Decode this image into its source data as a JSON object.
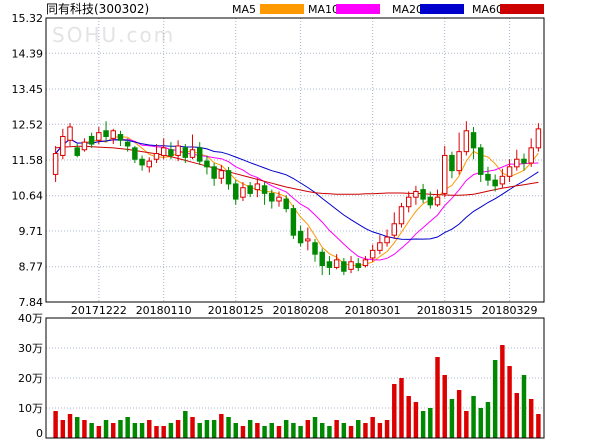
{
  "chart_data": {
    "type": "candlestick",
    "title": "同有科技(300302)",
    "watermark": "SOHU.com",
    "legend": [
      {
        "name": "MA5",
        "color": "#ff9900"
      },
      {
        "name": "MA10",
        "color": "#ff00ff"
      },
      {
        "name": "MA20",
        "color": "#0000cc"
      },
      {
        "name": "MA60",
        "color": "#cc0000"
      }
    ],
    "colors": {
      "up": "#dd0000",
      "down": "#008800",
      "grid": "#aab3cc",
      "axis": "#000000"
    },
    "price_axis": {
      "ticks": [
        "15.32",
        "14.39",
        "13.45",
        "12.52",
        "11.58",
        "10.64",
        "9.71",
        "8.77",
        "7.84"
      ],
      "min": 7.84,
      "max": 15.32,
      "grid": true
    },
    "date_labels": [
      {
        "index": 6,
        "label": "20171222"
      },
      {
        "index": 15,
        "label": "20180110"
      },
      {
        "index": 25,
        "label": "20180125"
      },
      {
        "index": 34,
        "label": "20180208"
      },
      {
        "index": 44,
        "label": "20180301"
      },
      {
        "index": 54,
        "label": "20180315"
      },
      {
        "index": 63,
        "label": "20180329"
      }
    ],
    "candles": [
      [
        11.2,
        11.75,
        11.95,
        11.0
      ],
      [
        11.7,
        12.2,
        12.4,
        11.6
      ],
      [
        12.1,
        12.45,
        12.55,
        11.95
      ],
      [
        11.9,
        11.7,
        12.0,
        11.65
      ],
      [
        11.85,
        12.05,
        12.15,
        11.8
      ],
      [
        12.2,
        12.0,
        12.3,
        11.9
      ],
      [
        12.1,
        12.3,
        12.45,
        12.0
      ],
      [
        12.35,
        12.2,
        12.6,
        12.05
      ],
      [
        12.15,
        12.35,
        12.4,
        12.0
      ],
      [
        12.25,
        12.1,
        12.35,
        11.95
      ],
      [
        12.05,
        11.95,
        12.15,
        11.8
      ],
      [
        11.9,
        11.6,
        11.95,
        11.5
      ],
      [
        11.6,
        11.45,
        11.7,
        11.3
      ],
      [
        11.4,
        11.55,
        11.65,
        11.25
      ],
      [
        11.6,
        11.75,
        12.0,
        11.5
      ],
      [
        11.7,
        11.9,
        12.15,
        11.6
      ],
      [
        11.85,
        11.7,
        12.05,
        11.6
      ],
      [
        11.7,
        11.95,
        12.1,
        11.55
      ],
      [
        11.9,
        11.65,
        12.0,
        11.5
      ],
      [
        11.65,
        11.85,
        12.25,
        11.6
      ],
      [
        11.9,
        11.55,
        12.05,
        11.45
      ],
      [
        11.55,
        11.4,
        11.7,
        11.2
      ],
      [
        11.4,
        11.1,
        11.5,
        10.9
      ],
      [
        11.1,
        11.3,
        11.45,
        10.95
      ],
      [
        11.3,
        10.95,
        11.4,
        10.8
      ],
      [
        10.95,
        10.55,
        11.05,
        10.4
      ],
      [
        10.6,
        10.85,
        11.0,
        10.5
      ],
      [
        10.9,
        10.7,
        11.0,
        10.6
      ],
      [
        10.8,
        10.95,
        11.1,
        10.6
      ],
      [
        10.9,
        10.7,
        11.0,
        10.4
      ],
      [
        10.7,
        10.5,
        10.8,
        10.3
      ],
      [
        10.5,
        10.6,
        10.75,
        10.35
      ],
      [
        10.55,
        10.3,
        10.65,
        10.2
      ],
      [
        10.3,
        9.6,
        10.4,
        9.5
      ],
      [
        9.7,
        9.4,
        9.85,
        9.3
      ],
      [
        9.45,
        9.5,
        9.8,
        9.2
      ],
      [
        9.4,
        9.1,
        9.5,
        8.9
      ],
      [
        9.15,
        8.8,
        9.25,
        8.55
      ],
      [
        8.9,
        8.75,
        9.05,
        8.55
      ],
      [
        8.75,
        8.95,
        9.1,
        8.7
      ],
      [
        8.9,
        8.65,
        9.0,
        8.55
      ],
      [
        8.7,
        8.9,
        9.05,
        8.6
      ],
      [
        8.85,
        8.75,
        9.0,
        8.65
      ],
      [
        8.8,
        8.95,
        9.05,
        8.75
      ],
      [
        9.0,
        9.2,
        9.35,
        8.9
      ],
      [
        9.2,
        9.4,
        9.6,
        9.1
      ],
      [
        9.4,
        9.55,
        9.75,
        9.3
      ],
      [
        9.6,
        9.9,
        10.2,
        9.5
      ],
      [
        9.9,
        10.35,
        10.45,
        9.8
      ],
      [
        10.35,
        10.6,
        10.75,
        10.2
      ],
      [
        10.6,
        10.75,
        10.9,
        10.4
      ],
      [
        10.8,
        10.55,
        10.95,
        10.45
      ],
      [
        10.6,
        10.4,
        10.75,
        10.3
      ],
      [
        10.4,
        10.6,
        10.8,
        10.35
      ],
      [
        10.7,
        11.7,
        11.95,
        10.6
      ],
      [
        11.7,
        11.3,
        11.8,
        11.1
      ],
      [
        11.3,
        11.8,
        12.3,
        11.2
      ],
      [
        11.8,
        12.35,
        12.6,
        11.7
      ],
      [
        12.3,
        11.9,
        12.45,
        11.6
      ],
      [
        11.9,
        11.2,
        12.0,
        11.0
      ],
      [
        11.2,
        11.05,
        11.4,
        10.9
      ],
      [
        11.05,
        10.9,
        11.2,
        10.75
      ],
      [
        10.95,
        11.15,
        11.35,
        10.85
      ],
      [
        11.15,
        11.4,
        11.6,
        11.0
      ],
      [
        11.4,
        11.6,
        11.85,
        11.3
      ],
      [
        11.6,
        11.5,
        11.75,
        11.3
      ],
      [
        11.5,
        11.9,
        12.15,
        11.4
      ],
      [
        11.9,
        12.4,
        12.55,
        11.8
      ]
    ],
    "volume_axis": {
      "ticks": [
        "40万",
        "30万",
        "20万",
        "10万",
        "0"
      ],
      "max": 40
    },
    "volumes": [
      9,
      6,
      8,
      7,
      6,
      5,
      4,
      6,
      5,
      6,
      7,
      5,
      5,
      6,
      4,
      4,
      5,
      6,
      9,
      7,
      5,
      6,
      6,
      8,
      7,
      5,
      4,
      6,
      5,
      4,
      5,
      4,
      6,
      5,
      4,
      6,
      7,
      5,
      4,
      6,
      5,
      4,
      6,
      5,
      7,
      5,
      6,
      18,
      20,
      14,
      12,
      9,
      10,
      27,
      21,
      13,
      16,
      9,
      14,
      10,
      12,
      26,
      31,
      24,
      15,
      21,
      13,
      8
    ]
  }
}
